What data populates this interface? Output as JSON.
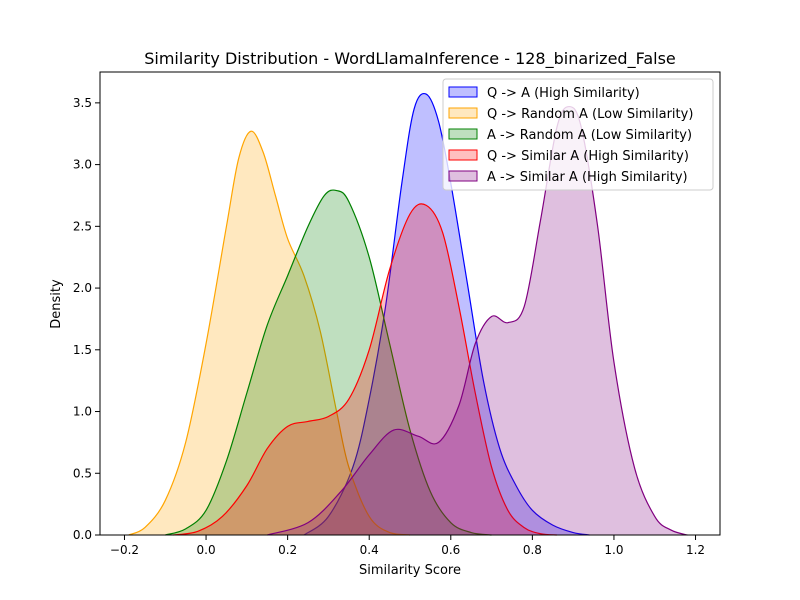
{
  "chart_data": {
    "type": "area",
    "title": "Similarity Distribution - WordLlamaInference - 128_binarized_False",
    "xlabel": "Similarity Score",
    "ylabel": "Density",
    "xlim": [
      -0.26,
      1.26
    ],
    "ylim": [
      0,
      3.75
    ],
    "x_ticks": [
      -0.2,
      0.0,
      0.2,
      0.4,
      0.6,
      0.8,
      1.0,
      1.2
    ],
    "x_tick_labels": [
      "−0.2",
      "0.0",
      "0.2",
      "0.4",
      "0.6",
      "0.8",
      "1.0",
      "1.2"
    ],
    "y_ticks": [
      0.0,
      0.5,
      1.0,
      1.5,
      2.0,
      2.5,
      3.0,
      3.5
    ],
    "y_tick_labels": [
      "0.0",
      "0.5",
      "1.0",
      "1.5",
      "2.0",
      "2.5",
      "3.0",
      "3.5"
    ],
    "grid": false,
    "legend_position": "top-right",
    "series": [
      {
        "name": "Q -> A (High Similarity)",
        "color": "#0000ff",
        "x": [
          0.24,
          0.3,
          0.36,
          0.4,
          0.44,
          0.48,
          0.51,
          0.54,
          0.57,
          0.6,
          0.64,
          0.68,
          0.72,
          0.76,
          0.8,
          0.85,
          0.9,
          0.94
        ],
        "y": [
          0.0,
          0.15,
          0.55,
          1.1,
          1.85,
          2.85,
          3.45,
          3.57,
          3.35,
          2.85,
          2.05,
          1.25,
          0.7,
          0.4,
          0.2,
          0.08,
          0.02,
          0.0
        ]
      },
      {
        "name": "Q -> Random A (Low Similarity)",
        "color": "#ffa500",
        "x": [
          -0.19,
          -0.15,
          -0.1,
          -0.05,
          0.0,
          0.05,
          0.08,
          0.11,
          0.14,
          0.17,
          0.2,
          0.24,
          0.28,
          0.32,
          0.35,
          0.4,
          0.45,
          0.5
        ],
        "y": [
          0.0,
          0.06,
          0.28,
          0.75,
          1.55,
          2.5,
          3.05,
          3.27,
          3.1,
          2.75,
          2.4,
          2.1,
          1.65,
          1.0,
          0.55,
          0.15,
          0.02,
          0.0
        ]
      },
      {
        "name": "A -> Random A (Low Similarity)",
        "color": "#008000",
        "x": [
          -0.1,
          -0.05,
          0.0,
          0.05,
          0.1,
          0.15,
          0.2,
          0.25,
          0.29,
          0.32,
          0.35,
          0.4,
          0.45,
          0.5,
          0.55,
          0.6,
          0.65,
          0.7
        ],
        "y": [
          0.0,
          0.05,
          0.2,
          0.6,
          1.15,
          1.7,
          2.1,
          2.5,
          2.75,
          2.79,
          2.7,
          2.25,
          1.55,
          0.85,
          0.35,
          0.1,
          0.02,
          0.0
        ]
      },
      {
        "name": "Q -> Similar A (High Similarity)",
        "color": "#ff0000",
        "x": [
          -0.08,
          -0.02,
          0.04,
          0.1,
          0.15,
          0.2,
          0.25,
          0.3,
          0.35,
          0.4,
          0.45,
          0.5,
          0.54,
          0.58,
          0.62,
          0.66,
          0.7,
          0.74,
          0.78,
          0.82,
          0.86
        ],
        "y": [
          0.0,
          0.03,
          0.15,
          0.4,
          0.7,
          0.88,
          0.92,
          0.96,
          1.1,
          1.5,
          2.15,
          2.6,
          2.67,
          2.45,
          1.85,
          1.15,
          0.55,
          0.2,
          0.06,
          0.01,
          0.0
        ]
      },
      {
        "name": "A -> Similar A (High Similarity)",
        "color": "#800080",
        "x": [
          0.15,
          0.25,
          0.33,
          0.4,
          0.46,
          0.52,
          0.57,
          0.62,
          0.66,
          0.7,
          0.74,
          0.78,
          0.82,
          0.86,
          0.89,
          0.92,
          0.96,
          1.0,
          1.05,
          1.1,
          1.14,
          1.18
        ],
        "y": [
          0.0,
          0.1,
          0.35,
          0.65,
          0.85,
          0.8,
          0.75,
          1.05,
          1.55,
          1.77,
          1.72,
          1.85,
          2.55,
          3.3,
          3.47,
          3.3,
          2.5,
          1.4,
          0.55,
          0.15,
          0.04,
          0.0
        ]
      }
    ]
  }
}
